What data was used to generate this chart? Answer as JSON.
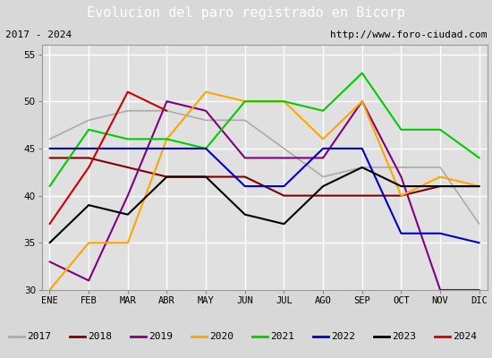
{
  "title": "Evolucion del paro registrado en Bicorp",
  "subtitle_left": "2017 - 2024",
  "subtitle_right": "http://www.foro-ciudad.com",
  "months": [
    "ENE",
    "FEB",
    "MAR",
    "ABR",
    "MAY",
    "JUN",
    "JUL",
    "AGO",
    "SEP",
    "OCT",
    "NOV",
    "DIC"
  ],
  "ylim": [
    30,
    56
  ],
  "yticks": [
    30,
    35,
    40,
    45,
    50,
    55
  ],
  "series": {
    "2017": {
      "data": [
        46,
        48,
        49,
        49,
        48,
        48,
        45,
        42,
        43,
        43,
        43,
        37
      ],
      "color": "#aaaaaa",
      "linewidth": 1.2
    },
    "2018": {
      "data": [
        44,
        44,
        43,
        42,
        42,
        42,
        40,
        40,
        40,
        40,
        41,
        41
      ],
      "color": "#800000",
      "linewidth": 1.5
    },
    "2019": {
      "data": [
        33,
        31,
        40,
        50,
        49,
        44,
        44,
        44,
        50,
        42,
        30,
        30
      ],
      "color": "#800080",
      "linewidth": 1.5
    },
    "2020": {
      "data": [
        30,
        35,
        35,
        46,
        51,
        50,
        50,
        46,
        50,
        40,
        42,
        41
      ],
      "color": "#ffa500",
      "linewidth": 1.5
    },
    "2021": {
      "data": [
        41,
        47,
        46,
        46,
        45,
        50,
        50,
        49,
        53,
        47,
        47,
        44
      ],
      "color": "#00cc00",
      "linewidth": 1.5
    },
    "2022": {
      "data": [
        45,
        45,
        45,
        45,
        45,
        41,
        41,
        45,
        45,
        36,
        36,
        35
      ],
      "color": "#0000cc",
      "linewidth": 1.5
    },
    "2023": {
      "data": [
        35,
        39,
        38,
        42,
        42,
        38,
        37,
        41,
        43,
        41,
        41,
        41
      ],
      "color": "#000000",
      "linewidth": 1.5
    },
    "2024": {
      "data": [
        37,
        43,
        51,
        49,
        null,
        null,
        null,
        null,
        null,
        null,
        null,
        null
      ],
      "color": "#cc0000",
      "linewidth": 1.5
    }
  },
  "bg_color": "#d8d8d8",
  "plot_bg_color": "#e0e0e0",
  "title_bg_color": "#4f81bd",
  "title_fg_color": "#ffffff",
  "subtitle_bg_color": "#d8d8d8",
  "grid_color": "#ffffff",
  "legend_order": [
    "2017",
    "2018",
    "2019",
    "2020",
    "2021",
    "2022",
    "2023",
    "2024"
  ]
}
